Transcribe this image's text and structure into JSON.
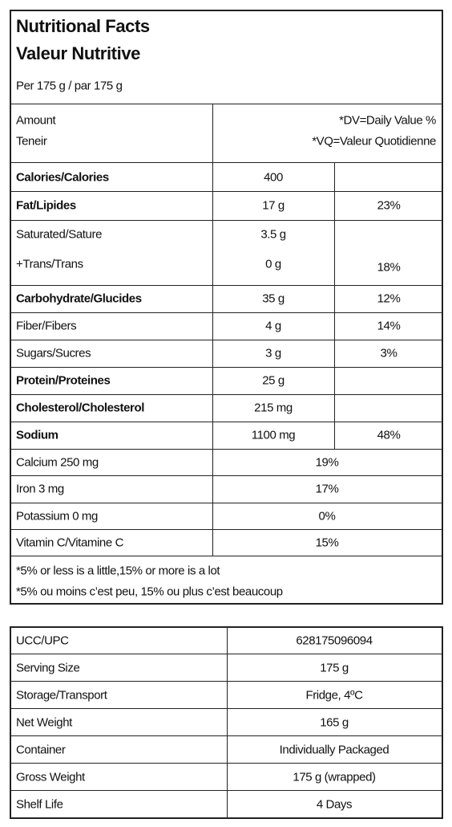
{
  "header": {
    "title_en": "Nutritional Facts",
    "title_fr": "Valeur Nutritive",
    "per": "Per 175 g / par 175 g"
  },
  "columns": {
    "amount": "Amount",
    "teneur": "Teneir",
    "dv": "*DV=Daily Value %",
    "vq": "*VQ=Valeur Quotidienne"
  },
  "nutrients": [
    {
      "name": "Calories/Calories",
      "amount": "400",
      "bold": true
    },
    {
      "name": "Fat/Lipides",
      "amount": "17 g",
      "dv": "23%",
      "bold": true
    },
    {
      "name": "Saturated/Sature",
      "amount": "3.5 g",
      "bold": false
    },
    {
      "name": "+Trans/Trans",
      "amount": "0 g",
      "dv": "18%",
      "bold": false
    },
    {
      "name": "Carbohydrate/Glucides",
      "amount": "35 g",
      "dv": "12%",
      "bold": true
    },
    {
      "name": "Fiber/Fibers",
      "amount": "4 g",
      "dv": "14%",
      "bold": false
    },
    {
      "name": "Sugars/Sucres",
      "amount": "3 g",
      "dv": "3%",
      "bold": false
    },
    {
      "name": "Protein/Proteines",
      "amount": "25 g",
      "bold": true
    },
    {
      "name": "Cholesterol/Cholesterol",
      "amount": "215 mg",
      "bold": true
    },
    {
      "name": "Sodium",
      "amount": "1100 mg",
      "dv": "48%",
      "bold": true
    }
  ],
  "vitamins": [
    {
      "name": "Calcium 250 mg",
      "dv": "19%"
    },
    {
      "name": "Iron 3 mg",
      "dv": "17%"
    },
    {
      "name": "Potassium 0 mg",
      "dv": "0%"
    },
    {
      "name": "Vitamin C/Vitamine C",
      "dv": "15%"
    }
  ],
  "footnote": [
    "*5% or less is a little,15% or more is a lot",
    "*5% ou moins c’est peu, 15% ou plus c’est beaucoup"
  ],
  "specs": [
    [
      "UCC/UPC",
      "628175096094"
    ],
    [
      "Serving Size",
      "175 g"
    ],
    [
      "Storage/Transport",
      "Fridge, 4ºC"
    ],
    [
      "Net Weight",
      "165 g"
    ],
    [
      "Container",
      "Individually Packaged"
    ],
    [
      "Gross Weight",
      "175 g (wrapped)"
    ],
    [
      "Shelf Life",
      "4 Days"
    ]
  ]
}
